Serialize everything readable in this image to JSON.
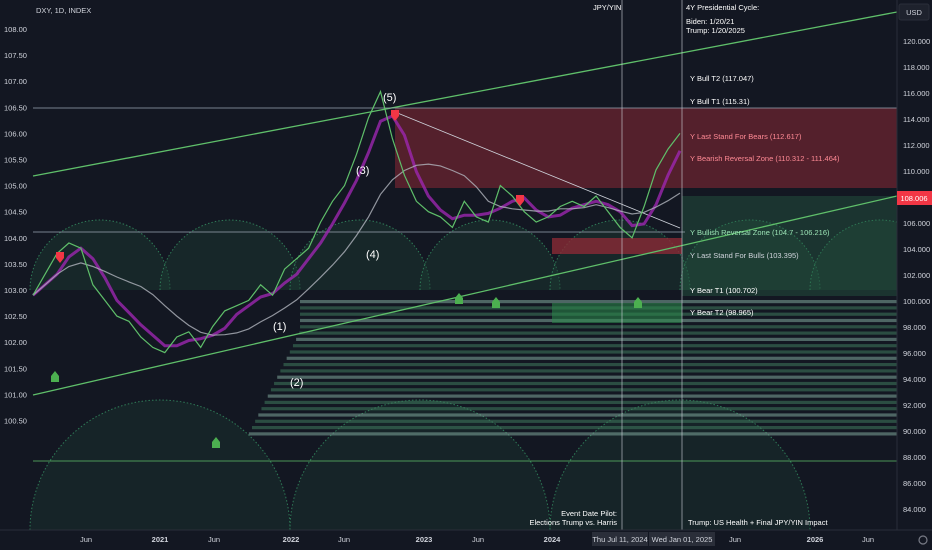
{
  "header": {
    "symbol": "DXY, 1D, INDEX"
  },
  "currency_button": "USD",
  "price_tag": "108.006",
  "chart_data": {
    "type": "line",
    "title": "DXY, 1D, INDEX",
    "left_axis": {
      "ticks": [
        "108.00",
        "107.50",
        "107.00",
        "106.50",
        "106.00",
        "105.50",
        "105.00",
        "104.50",
        "104.00",
        "103.50",
        "103.00",
        "102.50",
        "102.00",
        "101.50",
        "101.00",
        "100.50"
      ],
      "ylim": [
        100.3,
        108.4
      ]
    },
    "right_axis": {
      "ticks": [
        "120.000",
        "118.000",
        "116.000",
        "114.000",
        "112.000",
        "110.000",
        "108.000",
        "106.000",
        "104.000",
        "102.000",
        "100.000",
        "98.000",
        "96.000",
        "94.000",
        "92.000",
        "90.000",
        "88.000",
        "86.000",
        "84.000"
      ],
      "ylim": [
        82.5,
        122.5
      ]
    },
    "x_ticks": [
      "Jun",
      "2021",
      "Jun",
      "2022",
      "Jun",
      "2023",
      "Jun",
      "2024",
      "Jun",
      "Jun",
      "2026",
      "Jun"
    ],
    "cursor_labels": [
      "Thu Jul 11, 2024",
      "Wed Jan 01, 2025"
    ],
    "series": [
      {
        "name": "price",
        "values": [
          102.9,
          103.3,
          103.7,
          103.9,
          103.8,
          103.1,
          102.8,
          102.5,
          102.4,
          102.1,
          101.9,
          101.8,
          102.1,
          102.2,
          101.9,
          102.3,
          102.6,
          102.7,
          102.8,
          103.1,
          102.9,
          103.4,
          103.6,
          103.8,
          104.3,
          104.7,
          105.0,
          105.6,
          106.3,
          106.8,
          105.9,
          105.2,
          104.7,
          104.5,
          104.4,
          104.2,
          104.7,
          104.4,
          104.3,
          105.0,
          104.8,
          104.5,
          104.3,
          104.4,
          104.6,
          104.7,
          104.6,
          104.8,
          104.5,
          104.2,
          104.0,
          104.6,
          105.3,
          105.7,
          106.0
        ]
      }
    ],
    "wave_labels": [
      "(1)",
      "(2)",
      "(3)",
      "(4)",
      "(5)"
    ],
    "level_labels": [
      "Y Bull T2 (117.047)",
      "Y Bull T1 (115.31)",
      "Y Last Stand For Bears (112.617)",
      "Y Bearish Reversal Zone (110.312 - 111.464)",
      "Y Bullish Reversal Zone (104.7 - 106.216)",
      "Y Last Stand For Bulls (103.395)",
      "Y Bear T1 (100.702)",
      "Y Bear T2 (98.965)"
    ],
    "annotations": {
      "jpy_label": "JPY/YIN",
      "cycle_title": "4Y Presidential Cycle:",
      "biden": "Biden: 1/20/21",
      "trump": "Trump: 1/20/2025",
      "event_line1": "Event Date Pilot:",
      "event_line2": "Elections Trump vs. Harris",
      "impact": "Trump: US Health + Final JPY/YIN Impact"
    },
    "colors": {
      "background": "#131722",
      "bull": "#4caf50",
      "bear": "#f23645",
      "trendline": "#5fbf6a",
      "zone_red": "#6b2430",
      "zone_green": "#2c6b4a",
      "price_tag": "#f23645"
    },
    "grid": false
  }
}
